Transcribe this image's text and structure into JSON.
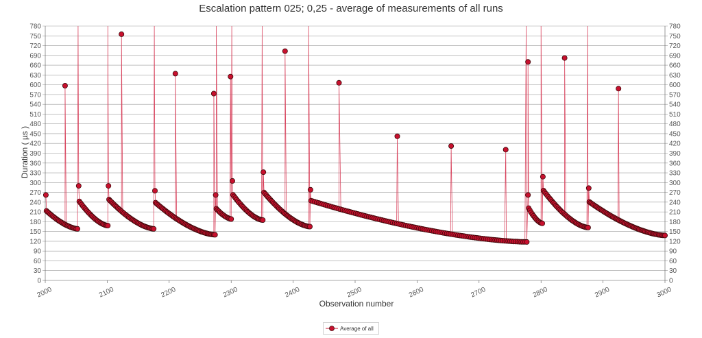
{
  "chart_data": {
    "type": "scatter",
    "title": "Escalation pattern 025; 0,25 - average of measurements of all runs",
    "xlabel": "Observation number",
    "ylabel": "Duration ( µs )",
    "xlim": [
      2000,
      3000
    ],
    "ylim": [
      0,
      780
    ],
    "x_ticks": [
      "2000",
      "2100",
      "2200",
      "2300",
      "2400",
      "2500",
      "2600",
      "2700",
      "2800",
      "2900",
      "3000"
    ],
    "y_ticks": [
      "0",
      "30",
      "60",
      "90",
      "120",
      "150",
      "180",
      "210",
      "240",
      "270",
      "300",
      "330",
      "360",
      "390",
      "420",
      "450",
      "480",
      "510",
      "540",
      "570",
      "600",
      "630",
      "660",
      "690",
      "720",
      "750",
      "780"
    ],
    "grid": "horizontal",
    "legend": "bottom-center",
    "colors": {
      "marker": "#c8102e",
      "marker_edge": "#3a0a0a",
      "line": "#d9455f"
    },
    "series": [
      {
        "name": "Average of all",
        "segments": [
          {
            "start": 2001,
            "end": 2053,
            "peak": 262,
            "y_start": 215,
            "y_end": 158,
            "step": 2
          },
          {
            "start": 2054,
            "end": 2101,
            "peak": 290,
            "y_start": 245,
            "y_end": 168,
            "step": 2
          },
          {
            "start": 2102,
            "end": 2176,
            "peak": 290,
            "y_start": 250,
            "y_end": 158,
            "step": 2
          },
          {
            "start": 2177,
            "end": 2274,
            "peak": 275,
            "y_start": 240,
            "y_end": 140,
            "step": 2
          },
          {
            "start": 2275,
            "end": 2301,
            "peak": 262,
            "y_start": 222,
            "y_end": 188,
            "step": 2
          },
          {
            "start": 2302,
            "end": 2351,
            "peak": 305,
            "y_start": 265,
            "y_end": 185,
            "step": 2
          },
          {
            "start": 2352,
            "end": 2427,
            "peak": 332,
            "y_start": 272,
            "y_end": 165,
            "step": 2
          },
          {
            "start": 2428,
            "end": 2778,
            "peak": 278,
            "y_start": 245,
            "y_end": 118,
            "step": 3
          },
          {
            "start": 2779,
            "end": 2802,
            "peak": 262,
            "y_start": 225,
            "y_end": 175,
            "step": 2
          },
          {
            "start": 2803,
            "end": 2876,
            "peak": 318,
            "y_start": 278,
            "y_end": 162,
            "step": 2
          },
          {
            "start": 2877,
            "end": 3000,
            "peak": 283,
            "y_start": 242,
            "y_end": 138,
            "step": 2
          }
        ],
        "outliers": [
          {
            "x": 2032,
            "y": 597
          },
          {
            "x": 2053,
            "y": 780
          },
          {
            "x": 2101,
            "y": 780
          },
          {
            "x": 2123,
            "y": 755
          },
          {
            "x": 2176,
            "y": 780
          },
          {
            "x": 2210,
            "y": 634
          },
          {
            "x": 2272,
            "y": 573
          },
          {
            "x": 2276,
            "y": 780
          },
          {
            "x": 2299,
            "y": 625
          },
          {
            "x": 2301,
            "y": 780
          },
          {
            "x": 2350,
            "y": 780
          },
          {
            "x": 2387,
            "y": 703
          },
          {
            "x": 2425,
            "y": 780
          },
          {
            "x": 2474,
            "y": 606
          },
          {
            "x": 2568,
            "y": 442
          },
          {
            "x": 2655,
            "y": 412
          },
          {
            "x": 2743,
            "y": 401
          },
          {
            "x": 2776,
            "y": 780
          },
          {
            "x": 2779,
            "y": 670
          },
          {
            "x": 2800,
            "y": 780
          },
          {
            "x": 2838,
            "y": 682
          },
          {
            "x": 2875,
            "y": 780
          },
          {
            "x": 2925,
            "y": 588
          }
        ]
      }
    ]
  }
}
